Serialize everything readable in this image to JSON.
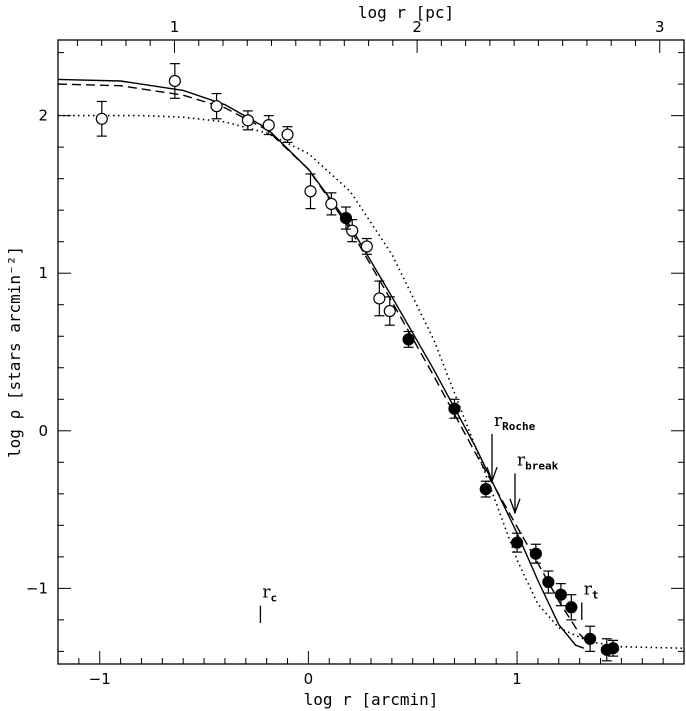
{
  "chart_data": {
    "type": "scatter",
    "xlabel": "log r [arcmin]",
    "ylabel": "log ρ [stars arcmin⁻²]",
    "x2label": "log r [pc]",
    "xlim": [
      -1.2,
      1.8
    ],
    "ylim": [
      -1.48,
      2.48
    ],
    "x2lim": [
      0.52,
      3.1
    ],
    "xticks": [
      -1,
      0,
      1
    ],
    "yticks": [
      -1,
      0,
      1,
      2
    ],
    "x2ticks": [
      1,
      2,
      3
    ],
    "tick_labels": {
      "x": [
        "−1",
        "0",
        "1"
      ],
      "y": [
        "−1",
        "0",
        "1",
        "2"
      ],
      "x2": [
        "1",
        "2",
        "3"
      ]
    },
    "grid": false,
    "series": [
      {
        "marker": "open-circle",
        "points": [
          {
            "x": -0.99,
            "y": 1.98,
            "err": 0.11
          },
          {
            "x": -0.64,
            "y": 2.22,
            "err": 0.11
          },
          {
            "x": -0.44,
            "y": 2.06,
            "err": 0.08
          },
          {
            "x": -0.29,
            "y": 1.97,
            "err": 0.06
          },
          {
            "x": -0.19,
            "y": 1.94,
            "err": 0.06
          },
          {
            "x": -0.1,
            "y": 1.88,
            "err": 0.05
          },
          {
            "x": 0.01,
            "y": 1.52,
            "err": 0.11
          },
          {
            "x": 0.11,
            "y": 1.44,
            "err": 0.07
          },
          {
            "x": 0.21,
            "y": 1.27,
            "err": 0.07
          },
          {
            "x": 0.28,
            "y": 1.17,
            "err": 0.05
          },
          {
            "x": 0.34,
            "y": 0.84,
            "err": 0.11
          },
          {
            "x": 0.39,
            "y": 0.76,
            "err": 0.09
          }
        ]
      },
      {
        "marker": "filled-circle",
        "points": [
          {
            "x": 0.18,
            "y": 1.35,
            "err": 0.07
          },
          {
            "x": 0.48,
            "y": 0.58,
            "err": 0.05
          },
          {
            "x": 0.7,
            "y": 0.14,
            "err": 0.06
          },
          {
            "x": 0.85,
            "y": -0.37,
            "err": 0.05
          },
          {
            "x": 1.0,
            "y": -0.71,
            "err": 0.06
          },
          {
            "x": 1.09,
            "y": -0.78,
            "err": 0.06
          },
          {
            "x": 1.15,
            "y": -0.96,
            "err": 0.07
          },
          {
            "x": 1.21,
            "y": -1.04,
            "err": 0.07
          },
          {
            "x": 1.26,
            "y": -1.12,
            "err": 0.08
          },
          {
            "x": 1.35,
            "y": -1.32,
            "err": 0.08
          },
          {
            "x": 1.43,
            "y": -1.39,
            "err": 0.07
          },
          {
            "x": 1.46,
            "y": -1.38,
            "err": 0.05
          }
        ]
      },
      {
        "line": "solid",
        "points": [
          {
            "x": -1.2,
            "y": 2.23
          },
          {
            "x": -0.9,
            "y": 2.22
          },
          {
            "x": -0.6,
            "y": 2.16
          },
          {
            "x": -0.4,
            "y": 2.07
          },
          {
            "x": -0.2,
            "y": 1.92
          },
          {
            "x": 0.0,
            "y": 1.66
          },
          {
            "x": 0.2,
            "y": 1.3
          },
          {
            "x": 0.4,
            "y": 0.85
          },
          {
            "x": 0.6,
            "y": 0.39
          },
          {
            "x": 0.8,
            "y": -0.1
          },
          {
            "x": 1.0,
            "y": -0.65
          },
          {
            "x": 1.1,
            "y": -0.95
          },
          {
            "x": 1.2,
            "y": -1.23
          },
          {
            "x": 1.28,
            "y": -1.36
          },
          {
            "x": 1.32,
            "y": -1.38
          }
        ]
      },
      {
        "line": "dashed",
        "points": [
          {
            "x": -1.2,
            "y": 2.2
          },
          {
            "x": -0.9,
            "y": 2.19
          },
          {
            "x": -0.6,
            "y": 2.13
          },
          {
            "x": -0.4,
            "y": 2.05
          },
          {
            "x": -0.2,
            "y": 1.91
          },
          {
            "x": 0.0,
            "y": 1.66
          },
          {
            "x": 0.2,
            "y": 1.28
          },
          {
            "x": 0.4,
            "y": 0.82
          },
          {
            "x": 0.6,
            "y": 0.35
          },
          {
            "x": 0.8,
            "y": -0.14
          },
          {
            "x": 1.0,
            "y": -0.61
          },
          {
            "x": 1.1,
            "y": -0.84
          },
          {
            "x": 1.2,
            "y": -1.08
          },
          {
            "x": 1.3,
            "y": -1.29
          },
          {
            "x": 1.35,
            "y": -1.36
          }
        ]
      },
      {
        "line": "dotted",
        "points": [
          {
            "x": -1.2,
            "y": 2.0
          },
          {
            "x": -0.8,
            "y": 2.0
          },
          {
            "x": -0.6,
            "y": 1.99
          },
          {
            "x": -0.4,
            "y": 1.96
          },
          {
            "x": -0.2,
            "y": 1.89
          },
          {
            "x": 0.0,
            "y": 1.76
          },
          {
            "x": 0.2,
            "y": 1.52
          },
          {
            "x": 0.4,
            "y": 1.12
          },
          {
            "x": 0.6,
            "y": 0.58
          },
          {
            "x": 0.8,
            "y": -0.1
          },
          {
            "x": 1.0,
            "y": -0.82
          },
          {
            "x": 1.1,
            "y": -1.1
          },
          {
            "x": 1.2,
            "y": -1.25
          },
          {
            "x": 1.35,
            "y": -1.34
          },
          {
            "x": 1.5,
            "y": -1.37
          },
          {
            "x": 1.8,
            "y": -1.38
          }
        ]
      }
    ],
    "annotations": [
      {
        "text": "r",
        "sub": "Roche",
        "marker": "arrow",
        "x": 0.88,
        "y_from": -0.02,
        "y_to": -0.32
      },
      {
        "text": "r",
        "sub": "break",
        "marker": "arrow",
        "x": 0.99,
        "y_from": -0.27,
        "y_to": -0.52
      },
      {
        "text": "r",
        "sub": "c",
        "marker": "tick",
        "x": -0.23,
        "y_from": -1.11,
        "y_to": -1.22
      },
      {
        "text": "r",
        "sub": "t",
        "marker": "tick",
        "x": 1.31,
        "y_from": -1.09,
        "y_to": -1.2
      }
    ]
  }
}
